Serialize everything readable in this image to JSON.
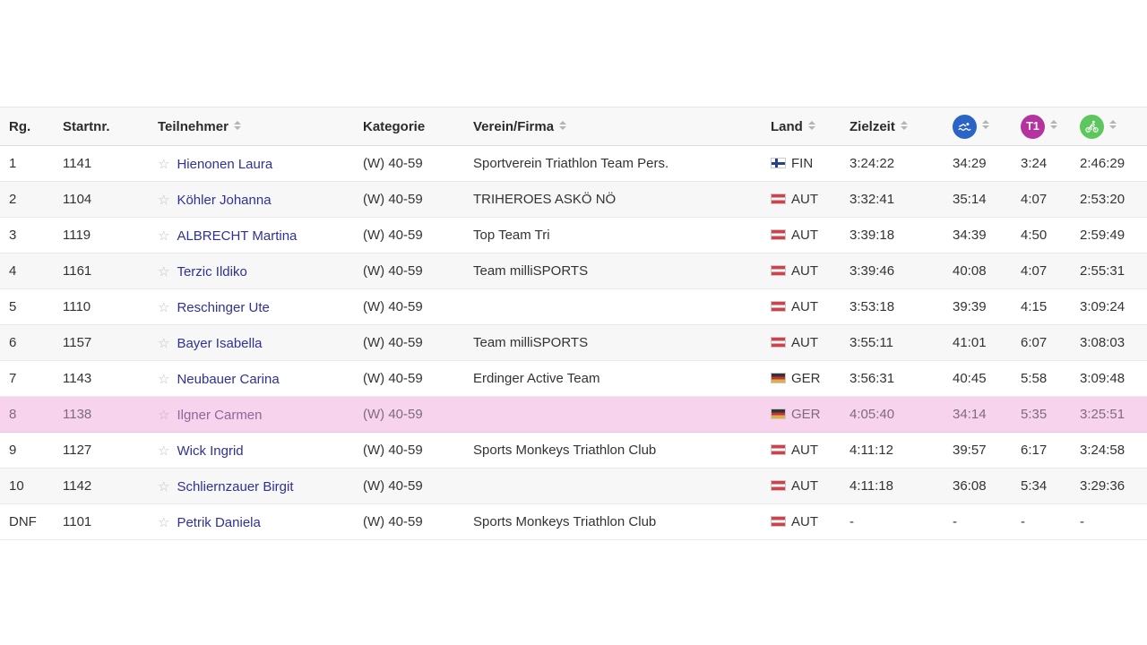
{
  "header": {
    "columns": [
      {
        "label": "Rg.",
        "sortable": false
      },
      {
        "label": "Startnr.",
        "sortable": false
      },
      {
        "label": "Teilnehmer",
        "sortable": true
      },
      {
        "label": "Kategorie",
        "sortable": false
      },
      {
        "label": "Verein/Firma",
        "sortable": true
      },
      {
        "label": "Land",
        "sortable": true
      },
      {
        "label": "Zielzeit",
        "sortable": true
      },
      {
        "icon": "swim-icon",
        "color": "#2a64c6",
        "sortable": true
      },
      {
        "icon": "t1-badge",
        "label": "T1",
        "color": "#b5339f",
        "sortable": true
      },
      {
        "icon": "bike-icon",
        "color": "#5cc75c",
        "sortable": true
      }
    ]
  },
  "rows": [
    {
      "rank": "1",
      "startnr": "1141",
      "name": "Hienonen Laura",
      "category": "(W) 40-59",
      "club": "Sportverein Triathlon Team Pers.",
      "country": "FIN",
      "final": "3:24:22",
      "swim": "34:29",
      "t1": "3:24",
      "bike": "2:46:29",
      "highlighted": false
    },
    {
      "rank": "2",
      "startnr": "1104",
      "name": "Köhler Johanna",
      "category": "(W) 40-59",
      "club": "TRIHEROES ASKÖ NÖ",
      "country": "AUT",
      "final": "3:32:41",
      "swim": "35:14",
      "t1": "4:07",
      "bike": "2:53:20",
      "highlighted": false
    },
    {
      "rank": "3",
      "startnr": "1119",
      "name": "ALBRECHT Martina",
      "category": "(W) 40-59",
      "club": "Top Team Tri",
      "country": "AUT",
      "final": "3:39:18",
      "swim": "34:39",
      "t1": "4:50",
      "bike": "2:59:49",
      "highlighted": false
    },
    {
      "rank": "4",
      "startnr": "1161",
      "name": "Terzic Ildiko",
      "category": "(W) 40-59",
      "club": "Team milliSPORTS",
      "country": "AUT",
      "final": "3:39:46",
      "swim": "40:08",
      "t1": "4:07",
      "bike": "2:55:31",
      "highlighted": false
    },
    {
      "rank": "5",
      "startnr": "1110",
      "name": "Reschinger Ute",
      "category": "(W) 40-59",
      "club": "",
      "country": "AUT",
      "final": "3:53:18",
      "swim": "39:39",
      "t1": "4:15",
      "bike": "3:09:24",
      "highlighted": false
    },
    {
      "rank": "6",
      "startnr": "1157",
      "name": "Bayer Isabella",
      "category": "(W) 40-59",
      "club": "Team milliSPORTS",
      "country": "AUT",
      "final": "3:55:11",
      "swim": "41:01",
      "t1": "6:07",
      "bike": "3:08:03",
      "highlighted": false
    },
    {
      "rank": "7",
      "startnr": "1143",
      "name": "Neubauer Carina",
      "category": "(W) 40-59",
      "club": "Erdinger Active Team",
      "country": "GER",
      "final": "3:56:31",
      "swim": "40:45",
      "t1": "5:58",
      "bike": "3:09:48",
      "highlighted": false
    },
    {
      "rank": "8",
      "startnr": "1138",
      "name": "Ilgner Carmen",
      "category": "(W) 40-59",
      "club": "",
      "country": "GER",
      "final": "4:05:40",
      "swim": "34:14",
      "t1": "5:35",
      "bike": "3:25:51",
      "highlighted": true
    },
    {
      "rank": "9",
      "startnr": "1127",
      "name": "Wick Ingrid",
      "category": "(W) 40-59",
      "club": "Sports Monkeys Triathlon Club",
      "country": "AUT",
      "final": "4:11:12",
      "swim": "39:57",
      "t1": "6:17",
      "bike": "3:24:58",
      "highlighted": false
    },
    {
      "rank": "10",
      "startnr": "1142",
      "name": "Schliernzauer Birgit",
      "category": "(W) 40-59",
      "club": "",
      "country": "AUT",
      "final": "4:11:18",
      "swim": "36:08",
      "t1": "5:34",
      "bike": "3:29:36",
      "highlighted": false
    },
    {
      "rank": "DNF",
      "startnr": "1101",
      "name": "Petrik Daniela",
      "category": "(W) 40-59",
      "club": "Sports Monkeys Triathlon Club",
      "country": "AUT",
      "final": "-",
      "swim": "-",
      "t1": "-",
      "bike": "-",
      "highlighted": false
    }
  ],
  "icons": {
    "favorite_star": "☆",
    "swim": "swim-icon",
    "t1": "t1-badge",
    "bike": "bike-icon"
  },
  "colors": {
    "highlight_row_bg": "#f8d3ee",
    "link": "#2f3294",
    "swim_circle": "#2a64c6",
    "t1_circle": "#b5339f",
    "bike_circle": "#5cc75c",
    "header_bg": "#f8f8f8",
    "stripe_bg": "#f7f7f7"
  }
}
